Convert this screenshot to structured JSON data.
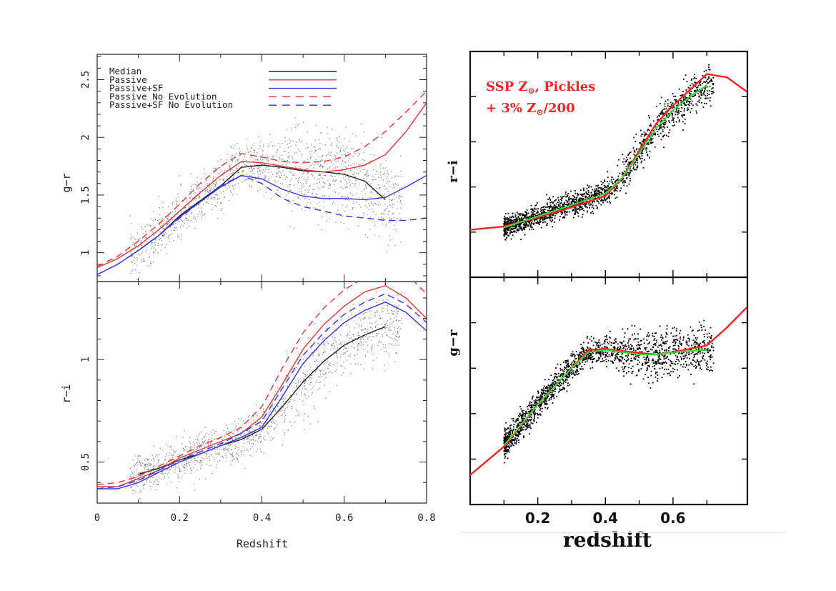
{
  "chart_data": [
    {
      "type": "line",
      "panel": "left",
      "xlabel": "Redshift",
      "xlim": [
        0,
        0.8
      ],
      "xticks": [
        "0",
        "0.2",
        "0.4",
        "0.6",
        "0.8"
      ],
      "legend": {
        "placement": "top-left",
        "entries": [
          "Median",
          "Passive",
          "Passive+SF",
          "Passive No Evolution",
          "Passive+SF No Evolution"
        ],
        "colors": [
          "#222222",
          "#ee3333",
          "#3333ee",
          "#ee3333",
          "#3333ee"
        ],
        "dashed": [
          false,
          false,
          false,
          true,
          true
        ]
      },
      "subplots": [
        {
          "id": "left-top",
          "ylabel": "g−r",
          "ylim": [
            0.75,
            2.72
          ],
          "yticks": [
            "1",
            "1.5",
            "2",
            "2.5"
          ],
          "series": [
            {
              "name": "Median",
              "color": "#222222",
              "dash": false,
              "x": [
                0.1,
                0.15,
                0.2,
                0.25,
                0.3,
                0.35,
                0.4,
                0.45,
                0.5,
                0.55,
                0.6,
                0.65,
                0.7
              ],
              "y": [
                1.02,
                1.15,
                1.32,
                1.45,
                1.58,
                1.74,
                1.76,
                1.74,
                1.71,
                1.7,
                1.68,
                1.62,
                1.46
              ]
            },
            {
              "name": "Passive",
              "color": "#ee3333",
              "dash": false,
              "x": [
                0,
                0.05,
                0.1,
                0.15,
                0.2,
                0.25,
                0.3,
                0.35,
                0.4,
                0.45,
                0.5,
                0.55,
                0.6,
                0.65,
                0.7,
                0.75,
                0.8
              ],
              "y": [
                0.87,
                0.95,
                1.06,
                1.2,
                1.36,
                1.52,
                1.67,
                1.79,
                1.78,
                1.75,
                1.72,
                1.7,
                1.72,
                1.76,
                1.85,
                2.05,
                2.3
              ]
            },
            {
              "name": "Passive+SF",
              "color": "#3333ee",
              "dash": false,
              "x": [
                0,
                0.05,
                0.1,
                0.15,
                0.2,
                0.25,
                0.3,
                0.35,
                0.4,
                0.45,
                0.5,
                0.55,
                0.6,
                0.65,
                0.7,
                0.75,
                0.8
              ],
              "y": [
                0.81,
                0.9,
                1.02,
                1.15,
                1.31,
                1.44,
                1.57,
                1.67,
                1.64,
                1.55,
                1.49,
                1.47,
                1.47,
                1.46,
                1.48,
                1.57,
                1.67
              ]
            },
            {
              "name": "Passive No Evolution",
              "color": "#ee3333",
              "dash": true,
              "x": [
                0,
                0.05,
                0.1,
                0.15,
                0.2,
                0.25,
                0.3,
                0.35,
                0.4,
                0.45,
                0.5,
                0.55,
                0.6,
                0.65,
                0.7,
                0.75,
                0.8
              ],
              "y": [
                0.88,
                0.97,
                1.1,
                1.25,
                1.42,
                1.6,
                1.75,
                1.86,
                1.83,
                1.79,
                1.78,
                1.79,
                1.83,
                1.92,
                2.05,
                2.22,
                2.4
              ]
            },
            {
              "name": "Passive+SF No Evolution",
              "color": "#3333ee",
              "dash": true,
              "x": [
                0,
                0.05,
                0.1,
                0.15,
                0.2,
                0.25,
                0.3,
                0.35,
                0.4,
                0.45,
                0.5,
                0.55,
                0.6,
                0.65,
                0.7,
                0.75,
                0.8
              ],
              "y": [
                0.81,
                0.9,
                1.02,
                1.15,
                1.3,
                1.44,
                1.58,
                1.67,
                1.6,
                1.47,
                1.4,
                1.36,
                1.32,
                1.3,
                1.28,
                1.28,
                1.3
              ]
            }
          ]
        },
        {
          "id": "left-bottom",
          "ylabel": "r−i",
          "ylim": [
            0.3,
            1.38
          ],
          "yticks": [
            "0.5",
            "1"
          ],
          "series": [
            {
              "name": "Median",
              "color": "#222222",
              "dash": false,
              "x": [
                0.1,
                0.15,
                0.2,
                0.25,
                0.3,
                0.35,
                0.4,
                0.45,
                0.5,
                0.55,
                0.6,
                0.65,
                0.7
              ],
              "y": [
                0.44,
                0.47,
                0.51,
                0.54,
                0.58,
                0.61,
                0.66,
                0.77,
                0.89,
                0.99,
                1.07,
                1.12,
                1.16
              ]
            },
            {
              "name": "Passive",
              "color": "#ee3333",
              "dash": false,
              "x": [
                0,
                0.05,
                0.1,
                0.15,
                0.2,
                0.25,
                0.3,
                0.35,
                0.4,
                0.45,
                0.5,
                0.55,
                0.6,
                0.65,
                0.7,
                0.75,
                0.8
              ],
              "y": [
                0.38,
                0.38,
                0.42,
                0.46,
                0.52,
                0.56,
                0.6,
                0.64,
                0.72,
                0.88,
                1.05,
                1.17,
                1.26,
                1.33,
                1.36,
                1.3,
                1.2
              ]
            },
            {
              "name": "Passive+SF",
              "color": "#3333ee",
              "dash": false,
              "x": [
                0,
                0.05,
                0.1,
                0.15,
                0.2,
                0.25,
                0.3,
                0.35,
                0.4,
                0.45,
                0.5,
                0.55,
                0.6,
                0.65,
                0.7,
                0.75,
                0.8
              ],
              "y": [
                0.37,
                0.37,
                0.4,
                0.45,
                0.5,
                0.54,
                0.58,
                0.62,
                0.67,
                0.82,
                0.98,
                1.09,
                1.18,
                1.24,
                1.28,
                1.23,
                1.14
              ]
            },
            {
              "name": "Passive No Evolution",
              "color": "#ee3333",
              "dash": true,
              "x": [
                0,
                0.05,
                0.1,
                0.15,
                0.2,
                0.25,
                0.3,
                0.35,
                0.4,
                0.45,
                0.5,
                0.55,
                0.6,
                0.65,
                0.7,
                0.75,
                0.8
              ],
              "y": [
                0.39,
                0.4,
                0.43,
                0.48,
                0.53,
                0.58,
                0.62,
                0.67,
                0.77,
                0.96,
                1.13,
                1.25,
                1.34,
                1.4,
                1.45,
                1.42,
                1.32
              ]
            },
            {
              "name": "Passive+SF No Evolution",
              "color": "#3333ee",
              "dash": true,
              "x": [
                0,
                0.05,
                0.1,
                0.15,
                0.2,
                0.25,
                0.3,
                0.35,
                0.4,
                0.45,
                0.5,
                0.55,
                0.6,
                0.65,
                0.7,
                0.75,
                0.8
              ],
              "y": [
                0.37,
                0.38,
                0.41,
                0.46,
                0.51,
                0.55,
                0.59,
                0.64,
                0.7,
                0.86,
                1.02,
                1.13,
                1.22,
                1.28,
                1.32,
                1.27,
                1.18
              ]
            }
          ]
        }
      ]
    },
    {
      "type": "scatter",
      "panel": "right",
      "xlabel": "redshift",
      "xlim": [
        0,
        0.82
      ],
      "xticks": [
        "0.2",
        "0.4",
        "0.6"
      ],
      "annotation": [
        "SSP Z",
        "⊙",
        ", Pickles",
        "+ 3% Z",
        "⊙",
        "/200"
      ],
      "subplots": [
        {
          "id": "right-top",
          "ylabel": "r−i",
          "ylim": [
            0,
            1
          ],
          "series": [
            {
              "name": "",
              "color": "#ff2020",
              "x": [
                0,
                0.1,
                0.2,
                0.3,
                0.4,
                0.45,
                0.5,
                0.55,
                0.6,
                0.65,
                0.7,
                0.76,
                0.82
              ],
              "y": [
                0.21,
                0.225,
                0.265,
                0.31,
                0.36,
                0.44,
                0.56,
                0.68,
                0.76,
                0.83,
                0.9,
                0.885,
                0.82
              ]
            },
            {
              "name": "",
              "color": "#33dd33",
              "x": [
                0.1,
                0.2,
                0.3,
                0.4,
                0.45,
                0.5,
                0.55,
                0.6,
                0.65,
                0.7
              ],
              "y": [
                0.22,
                0.27,
                0.32,
                0.37,
                0.44,
                0.55,
                0.66,
                0.74,
                0.8,
                0.85
              ]
            }
          ]
        },
        {
          "id": "right-bottom",
          "ylabel": "g−r",
          "ylim": [
            0,
            1
          ],
          "series": [
            {
              "name": "",
              "color": "#ff2020",
              "x": [
                0,
                0.1,
                0.2,
                0.3,
                0.35,
                0.4,
                0.45,
                0.55,
                0.6,
                0.7,
                0.76,
                0.82
              ],
              "y": [
                0.13,
                0.255,
                0.44,
                0.6,
                0.68,
                0.685,
                0.675,
                0.66,
                0.67,
                0.7,
                0.78,
                0.87
              ]
            },
            {
              "name": "",
              "color": "#33dd33",
              "x": [
                0.1,
                0.2,
                0.3,
                0.35,
                0.4,
                0.45,
                0.5,
                0.55,
                0.6,
                0.7
              ],
              "y": [
                0.26,
                0.44,
                0.6,
                0.67,
                0.68,
                0.67,
                0.66,
                0.66,
                0.67,
                0.68
              ]
            }
          ]
        }
      ]
    }
  ]
}
